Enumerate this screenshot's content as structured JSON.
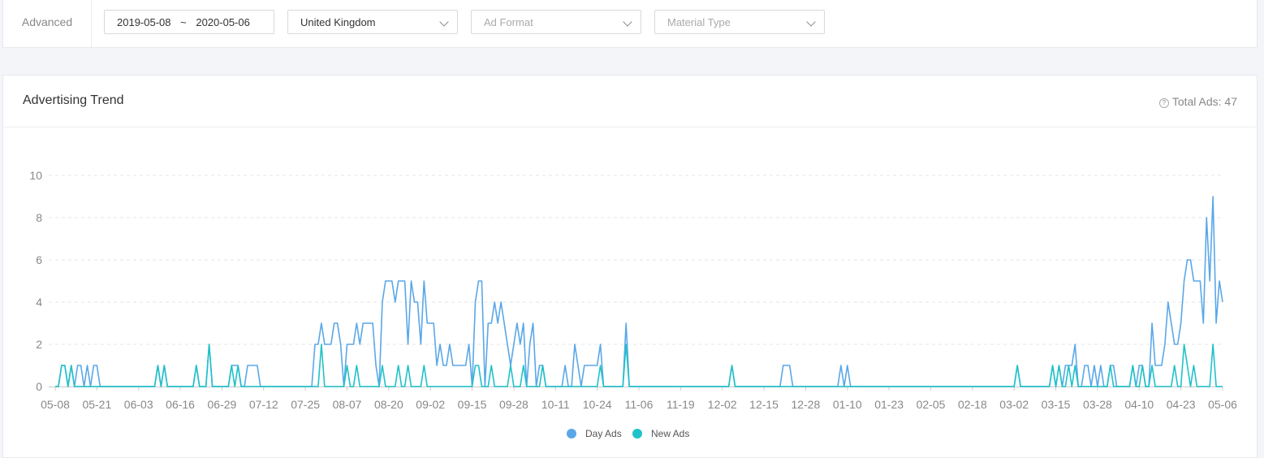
{
  "filters": {
    "label": "Advanced",
    "date_start": "2019-05-08",
    "date_sep": "~",
    "date_end": "2020-05-06",
    "country": "United Kingdom",
    "ad_format": "Ad Format",
    "material_type": "Material Type"
  },
  "card": {
    "title": "Advertising Trend",
    "total": "Total Ads: 47"
  },
  "chart_data": {
    "type": "line",
    "ylim": [
      0,
      10
    ],
    "yticks": [
      0,
      2,
      4,
      6,
      8,
      10
    ],
    "grid": true,
    "legend": "bottom",
    "categories": [
      "05-08",
      null,
      null,
      null,
      null,
      null,
      null,
      null,
      null,
      null,
      null,
      null,
      null,
      "05-21",
      null,
      null,
      null,
      null,
      null,
      null,
      null,
      null,
      null,
      null,
      null,
      null,
      "06-03",
      null,
      null,
      null,
      null,
      null,
      null,
      null,
      null,
      null,
      null,
      null,
      null,
      "06-16",
      null,
      null,
      null,
      null,
      null,
      null,
      null,
      null,
      null,
      null,
      null,
      null,
      "06-29",
      null,
      null,
      null,
      null,
      null,
      null,
      null,
      null,
      null,
      null,
      null,
      null,
      "07-12",
      null,
      null,
      null,
      null,
      null,
      null,
      null,
      null,
      null,
      null,
      null,
      null,
      "07-25",
      null,
      null,
      null,
      null,
      null,
      null,
      null,
      null,
      null,
      null,
      null,
      null,
      "08-07",
      null,
      null,
      null,
      null,
      null,
      null,
      null,
      null,
      null,
      null,
      null,
      null,
      "08-20",
      null,
      null,
      null,
      null,
      null,
      null,
      null,
      null,
      null,
      null,
      null,
      null,
      "09-02",
      null,
      null,
      null,
      null,
      null,
      null,
      null,
      null,
      null,
      null,
      null,
      null,
      "09-15",
      null,
      null,
      null,
      null,
      null,
      null,
      null,
      null,
      null,
      null,
      null,
      null,
      "09-28",
      null,
      null,
      null,
      null,
      null,
      null,
      null,
      null,
      null,
      null,
      null,
      null,
      "10-11",
      null,
      null,
      null,
      null,
      null,
      null,
      null,
      null,
      null,
      null,
      null,
      null,
      "10-24",
      null,
      null,
      null,
      null,
      null,
      null,
      null,
      null,
      null,
      null,
      null,
      null,
      "11-06",
      null,
      null,
      null,
      null,
      null,
      null,
      null,
      null,
      null,
      null,
      null,
      null,
      "11-19",
      null,
      null,
      null,
      null,
      null,
      null,
      null,
      null,
      null,
      null,
      null,
      null,
      "12-02",
      null,
      null,
      null,
      null,
      null,
      null,
      null,
      null,
      null,
      null,
      null,
      null,
      "12-15",
      null,
      null,
      null,
      null,
      null,
      null,
      null,
      null,
      null,
      null,
      null,
      null,
      "12-28",
      null,
      null,
      null,
      null,
      null,
      null,
      null,
      null,
      null,
      null,
      null,
      null,
      "01-10",
      null,
      null,
      null,
      null,
      null,
      null,
      null,
      null,
      null,
      null,
      null,
      null,
      "01-23",
      null,
      null,
      null,
      null,
      null,
      null,
      null,
      null,
      null,
      null,
      null,
      null,
      "02-05",
      null,
      null,
      null,
      null,
      null,
      null,
      null,
      null,
      null,
      null,
      null,
      null,
      "02-18",
      null,
      null,
      null,
      null,
      null,
      null,
      null,
      null,
      null,
      null,
      null,
      null,
      "03-02",
      null,
      null,
      null,
      null,
      null,
      null,
      null,
      null,
      null,
      null,
      null,
      null,
      "03-15",
      null,
      null,
      null,
      null,
      null,
      null,
      null,
      null,
      null,
      null,
      null,
      null,
      "03-28",
      null,
      null,
      null,
      null,
      null,
      null,
      null,
      null,
      null,
      null,
      null,
      null,
      "04-10",
      null,
      null,
      null,
      null,
      null,
      null,
      null,
      null,
      null,
      null,
      null,
      null,
      "04-23",
      null,
      null,
      null,
      null,
      null,
      null,
      null,
      null,
      null,
      null,
      null,
      null,
      "05-06"
    ],
    "series": [
      {
        "name": "Day Ads",
        "color": "#5aa7e8",
        "values": [
          0,
          0,
          1,
          1,
          0,
          1,
          0,
          1,
          1,
          0,
          1,
          0,
          1,
          1,
          0,
          0,
          0,
          0,
          0,
          0,
          0,
          0,
          0,
          0,
          0,
          0,
          0,
          0,
          0,
          0,
          0,
          0,
          1,
          0,
          1,
          0,
          0,
          0,
          0,
          0,
          0,
          0,
          0,
          0,
          1,
          0,
          0,
          0,
          2,
          0,
          0,
          0,
          0,
          0,
          0,
          1,
          1,
          1,
          0,
          0,
          1,
          1,
          1,
          1,
          0,
          0,
          0,
          0,
          0,
          0,
          0,
          0,
          0,
          0,
          0,
          0,
          0,
          0,
          0,
          0,
          0,
          2,
          2,
          3,
          2,
          2,
          2,
          3,
          3,
          2,
          0,
          2,
          2,
          2,
          3,
          2,
          3,
          3,
          3,
          3,
          1,
          0,
          4,
          5,
          5,
          5,
          4,
          5,
          5,
          5,
          2,
          5,
          4,
          4,
          2,
          5,
          3,
          3,
          3,
          1,
          2,
          1,
          1,
          2,
          1,
          1,
          1,
          1,
          1,
          2,
          0,
          4,
          5,
          5,
          0,
          3,
          3,
          4,
          3,
          4,
          3,
          2,
          1,
          2,
          3,
          2,
          3,
          0,
          2,
          3,
          0,
          1,
          1,
          0,
          0,
          0,
          0,
          0,
          0,
          1,
          0,
          0,
          2,
          1,
          0,
          1,
          1,
          1,
          1,
          1,
          2,
          0,
          0,
          0,
          0,
          0,
          0,
          0,
          3,
          0,
          0,
          0,
          0,
          0,
          0,
          0,
          0,
          0,
          0,
          0,
          0,
          0,
          0,
          0,
          0,
          0,
          0,
          0,
          0,
          0,
          0,
          0,
          0,
          0,
          0,
          0,
          0,
          0,
          0,
          0,
          0,
          1,
          0,
          0,
          0,
          0,
          0,
          0,
          0,
          0,
          0,
          0,
          0,
          0,
          0,
          0,
          0,
          1,
          1,
          1,
          0,
          0,
          0,
          0,
          0,
          0,
          0,
          0,
          0,
          0,
          0,
          0,
          0,
          0,
          0,
          1,
          0,
          1,
          0,
          0,
          0,
          0,
          0,
          0,
          0,
          0,
          0,
          0,
          0,
          0,
          0,
          0,
          0,
          0,
          0,
          0,
          0,
          0,
          0,
          0,
          0,
          0,
          0,
          0,
          0,
          0,
          0,
          0,
          0,
          0,
          0,
          0,
          0,
          0,
          0,
          0,
          0,
          0,
          0,
          0,
          0,
          0,
          0,
          0,
          0,
          0,
          0,
          0,
          0,
          0,
          1,
          0,
          0,
          0,
          0,
          0,
          0,
          0,
          0,
          0,
          0,
          1,
          0,
          1,
          0,
          1,
          1,
          1,
          2,
          0,
          0,
          1,
          1,
          0,
          1,
          0,
          1,
          0,
          0,
          1,
          1,
          0,
          0,
          0,
          0,
          0,
          1,
          0,
          1,
          1,
          0,
          0,
          3,
          1,
          1,
          1,
          2,
          4,
          3,
          2,
          2,
          3,
          5,
          6,
          6,
          5,
          5,
          5,
          3,
          8,
          5,
          9,
          3,
          5,
          4
        ]
      },
      {
        "name": "New Ads",
        "color": "#1fc2c8",
        "values": [
          0,
          0,
          1,
          1,
          0,
          1,
          0,
          0,
          0,
          0,
          0,
          0,
          0,
          0,
          0,
          0,
          0,
          0,
          0,
          0,
          0,
          0,
          0,
          0,
          0,
          0,
          0,
          0,
          0,
          0,
          0,
          0,
          1,
          0,
          1,
          0,
          0,
          0,
          0,
          0,
          0,
          0,
          0,
          0,
          1,
          0,
          0,
          0,
          2,
          0,
          0,
          0,
          0,
          0,
          0,
          1,
          0,
          1,
          0,
          0,
          0,
          0,
          0,
          0,
          0,
          0,
          0,
          0,
          0,
          0,
          0,
          0,
          0,
          0,
          0,
          0,
          0,
          0,
          0,
          0,
          0,
          0,
          0,
          2,
          0,
          0,
          0,
          0,
          0,
          0,
          0,
          1,
          0,
          0,
          1,
          0,
          0,
          0,
          0,
          0,
          0,
          0,
          1,
          0,
          0,
          0,
          0,
          1,
          0,
          0,
          1,
          0,
          0,
          0,
          0,
          1,
          0,
          0,
          0,
          0,
          0,
          0,
          0,
          0,
          0,
          0,
          0,
          0,
          0,
          0,
          0,
          1,
          1,
          0,
          0,
          0,
          1,
          0,
          0,
          0,
          0,
          0,
          1,
          0,
          0,
          0,
          1,
          0,
          0,
          0,
          0,
          0,
          1,
          0,
          0,
          0,
          0,
          0,
          0,
          0,
          0,
          0,
          0,
          0,
          0,
          0,
          0,
          0,
          0,
          0,
          1,
          0,
          0,
          0,
          0,
          0,
          0,
          0,
          2,
          0,
          0,
          0,
          0,
          0,
          0,
          0,
          0,
          0,
          0,
          0,
          0,
          0,
          0,
          0,
          0,
          0,
          0,
          0,
          0,
          0,
          0,
          0,
          0,
          0,
          0,
          0,
          0,
          0,
          0,
          0,
          0,
          1,
          0,
          0,
          0,
          0,
          0,
          0,
          0,
          0,
          0,
          0,
          0,
          0,
          0,
          0,
          0,
          0,
          0,
          0,
          0,
          0,
          0,
          0,
          0,
          0,
          0,
          0,
          0,
          0,
          0,
          0,
          0,
          0,
          0,
          0,
          0,
          0,
          0,
          0,
          0,
          0,
          0,
          0,
          0,
          0,
          0,
          0,
          0,
          0,
          0,
          0,
          0,
          0,
          0,
          0,
          0,
          0,
          0,
          0,
          0,
          0,
          0,
          0,
          0,
          0,
          0,
          0,
          0,
          0,
          0,
          0,
          0,
          0,
          0,
          0,
          0,
          0,
          0,
          0,
          0,
          0,
          0,
          0,
          0,
          0,
          0,
          0,
          0,
          0,
          1,
          0,
          0,
          0,
          0,
          0,
          0,
          0,
          0,
          0,
          0,
          1,
          0,
          1,
          0,
          0,
          1,
          0,
          1,
          0,
          0,
          0,
          0,
          0,
          0,
          0,
          0,
          0,
          0,
          1,
          0,
          0,
          0,
          0,
          0,
          0,
          1,
          0,
          0,
          1,
          0,
          0,
          1,
          0,
          0,
          0,
          0,
          0,
          0,
          1,
          0,
          0,
          2,
          1,
          0,
          1,
          0,
          0,
          0,
          0,
          0,
          2,
          0,
          0,
          0
        ]
      }
    ]
  }
}
